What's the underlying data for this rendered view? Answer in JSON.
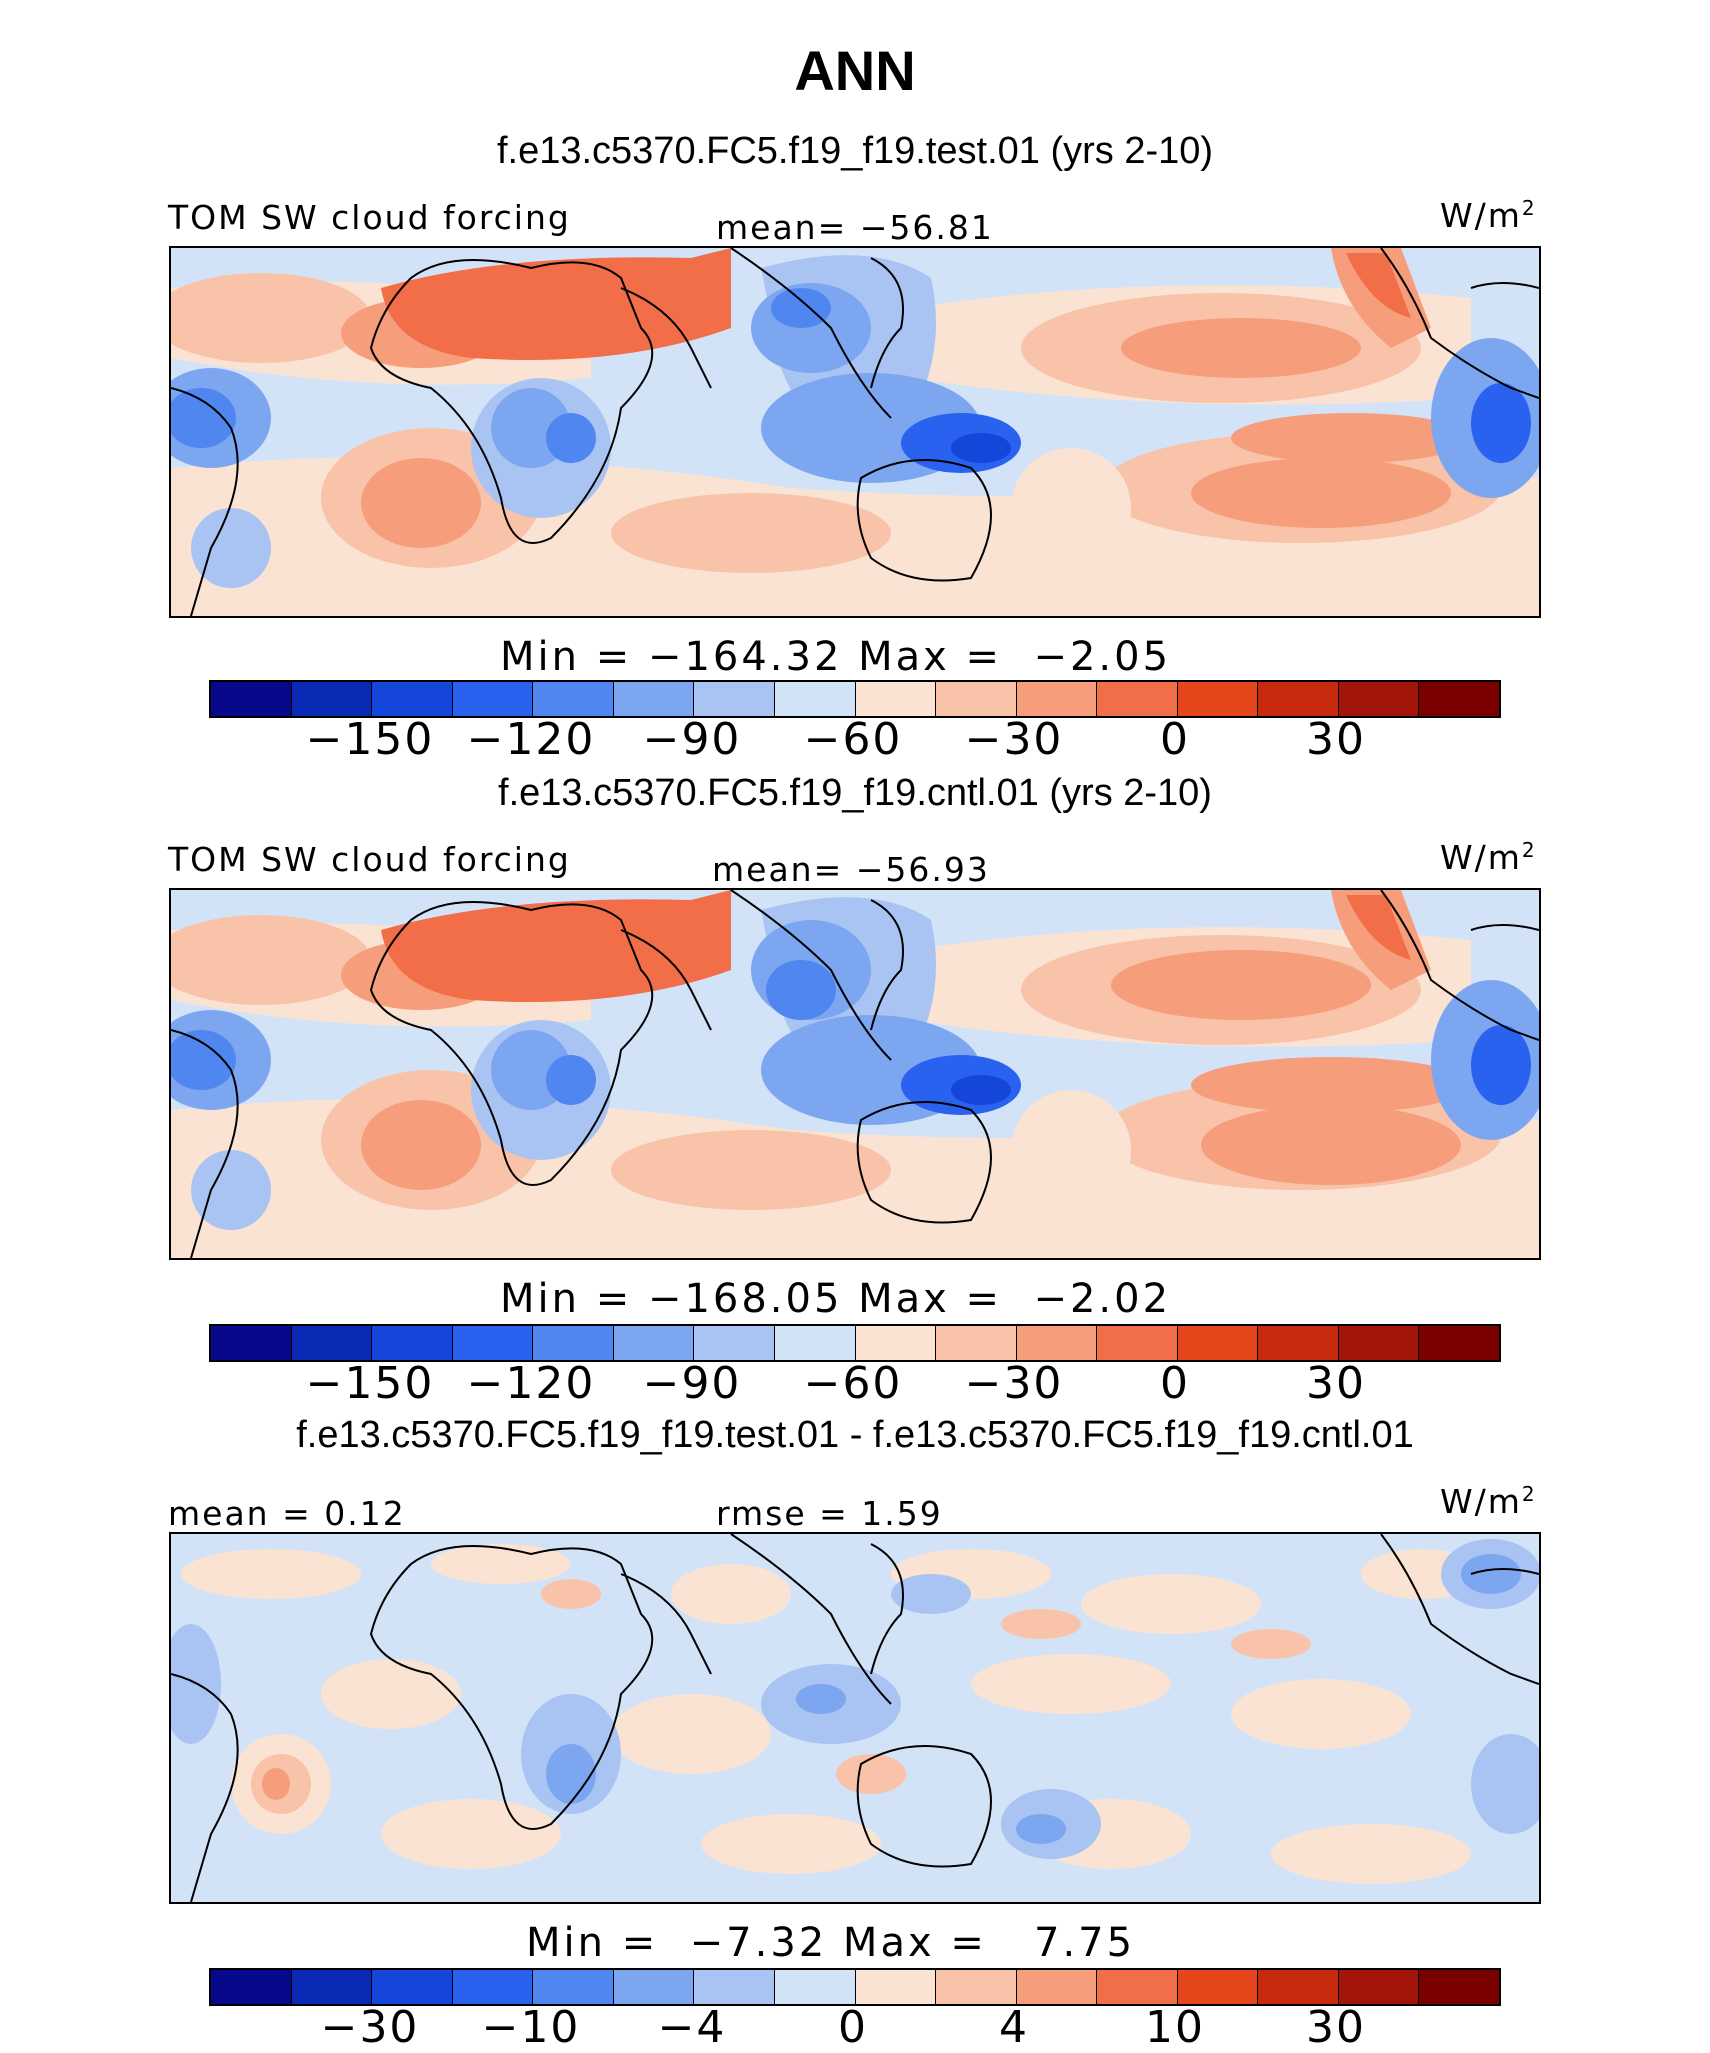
{
  "title": "ANN",
  "panels": [
    {
      "case_title": "f.e13.c5370.FC5.f19_f19.test.01 (yrs 2-10)",
      "left_label": "TOM SW cloud forcing",
      "center_label": "mean= −56.81",
      "units": "W/m",
      "units_sup": "2",
      "minmax": "Min = −164.32 Max =  −2.05",
      "colorbar_ticks": [
        "−150",
        "−120",
        "−90",
        "−60",
        "−30",
        "0",
        "30"
      ]
    },
    {
      "case_title": "f.e13.c5370.FC5.f19_f19.cntl.01 (yrs 2-10)",
      "left_label": "TOM SW cloud forcing",
      "center_label": "mean= −56.93",
      "units": "W/m",
      "units_sup": "2",
      "minmax": "Min = −168.05 Max =  −2.02",
      "colorbar_ticks": [
        "−150",
        "−120",
        "−90",
        "−60",
        "−30",
        "0",
        "30"
      ]
    },
    {
      "case_title": "f.e13.c5370.FC5.f19_f19.test.01 - f.e13.c5370.FC5.f19_f19.cntl.01",
      "left_label": "mean =   0.12",
      "center_label": "rmse =   1.59",
      "units": "W/m",
      "units_sup": "2",
      "minmax": "Min =  −7.32 Max =   7.75",
      "colorbar_ticks": [
        "−30",
        "−10",
        "−4",
        "0",
        "4",
        "10",
        "30"
      ]
    }
  ],
  "colorbar_colors": [
    "#08088a",
    "#0a2ab5",
    "#1446d9",
    "#2a62f0",
    "#4f86f0",
    "#7da6f0",
    "#a9c4f2",
    "#d3e3f7",
    "#fbe3d4",
    "#f9c3a9",
    "#f69e7c",
    "#f26e49",
    "#e6461c",
    "#c82a0e",
    "#a3150a",
    "#7a0000"
  ]
}
